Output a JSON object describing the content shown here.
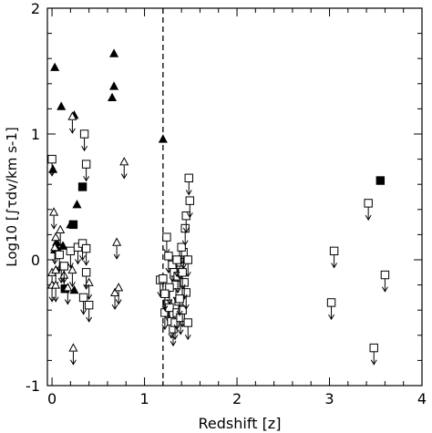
{
  "chart_data": {
    "type": "scatter",
    "xlabel": "Redshift [z]",
    "ylabel": "Log10 [∫τdv/km s-1]",
    "xlim": [
      -0.05,
      4.0
    ],
    "ylim": [
      -1,
      2
    ],
    "x_ticks": [
      0,
      1,
      2,
      3,
      4
    ],
    "y_ticks": [
      -1,
      0,
      1,
      2
    ],
    "divider_line_x": 1.2,
    "series": [
      {
        "marker": "filled-triangle",
        "points": [
          [
            0.03,
            1.53
          ],
          [
            0.1,
            1.22
          ],
          [
            0.24,
            1.15
          ],
          [
            0.67,
            1.64
          ],
          [
            0.67,
            1.38
          ],
          [
            0.65,
            1.29
          ],
          [
            1.2,
            0.96
          ],
          [
            0.01,
            0.72
          ],
          [
            0.03,
            0.08
          ],
          [
            0.06,
            0.09
          ],
          [
            0.2,
            0.28
          ],
          [
            0.24,
            -0.24
          ],
          [
            0.27,
            0.44
          ],
          [
            0.12,
            0.11
          ],
          [
            0.05,
            0.14
          ]
        ]
      },
      {
        "marker": "filled-square",
        "points": [
          [
            0.33,
            0.58
          ],
          [
            0.23,
            0.28
          ],
          [
            0.14,
            -0.23
          ],
          [
            3.55,
            0.63
          ]
        ]
      },
      {
        "marker": "open-triangle-arrow",
        "points": [
          [
            0.22,
            1.14
          ],
          [
            0.02,
            0.38
          ],
          [
            0.04,
            0.18
          ],
          [
            0.09,
            0.24
          ],
          [
            0.03,
            0.1
          ],
          [
            0.0,
            -0.1
          ],
          [
            0.04,
            -0.08
          ],
          [
            0.1,
            -0.05
          ],
          [
            0.13,
            -0.12
          ],
          [
            0.22,
            -0.08
          ],
          [
            0.0,
            -0.2
          ],
          [
            0.04,
            -0.2
          ],
          [
            0.23,
            -0.7
          ],
          [
            0.4,
            -0.18
          ],
          [
            0.7,
            0.14
          ],
          [
            0.68,
            -0.26
          ],
          [
            0.72,
            -0.22
          ],
          [
            0.78,
            0.78
          ],
          [
            0.17,
            -0.22
          ]
        ]
      },
      {
        "marker": "open-square-arrow",
        "points": [
          [
            0.0,
            0.8
          ],
          [
            0.35,
            1.0
          ],
          [
            0.37,
            0.76
          ],
          [
            0.08,
            0.04
          ],
          [
            0.13,
            -0.05
          ],
          [
            0.2,
            0.07
          ],
          [
            0.28,
            0.1
          ],
          [
            0.33,
            0.13
          ],
          [
            0.37,
            0.09
          ],
          [
            0.37,
            -0.1
          ],
          [
            0.34,
            -0.3
          ],
          [
            0.4,
            -0.36
          ],
          [
            1.17,
            -0.16
          ],
          [
            1.2,
            -0.15
          ],
          [
            1.22,
            -0.42
          ],
          [
            1.24,
            0.18
          ],
          [
            1.26,
            0.03
          ],
          [
            1.3,
            -0.04
          ],
          [
            1.32,
            -0.1
          ],
          [
            1.34,
            -0.2
          ],
          [
            1.36,
            -0.13
          ],
          [
            1.38,
            -0.02
          ],
          [
            1.25,
            -0.35
          ],
          [
            1.27,
            -0.38
          ],
          [
            1.29,
            -0.49
          ],
          [
            1.31,
            -0.55
          ],
          [
            1.33,
            -0.5
          ],
          [
            1.35,
            -0.42
          ],
          [
            1.37,
            -0.33
          ],
          [
            1.39,
            -0.46
          ],
          [
            1.41,
            -0.4
          ],
          [
            1.42,
            0.06
          ],
          [
            1.4,
            0.1
          ],
          [
            1.44,
            0.25
          ],
          [
            1.45,
            0.35
          ],
          [
            1.47,
            0.0
          ],
          [
            1.48,
            0.65
          ],
          [
            1.49,
            0.47
          ],
          [
            1.47,
            -0.5
          ],
          [
            1.45,
            -0.26
          ],
          [
            1.43,
            -0.18
          ],
          [
            1.41,
            -0.1
          ],
          [
            1.27,
            -0.22
          ],
          [
            1.22,
            -0.27
          ],
          [
            1.35,
            0.0
          ],
          [
            1.38,
            -0.31
          ],
          [
            3.02,
            -0.34
          ],
          [
            3.05,
            0.07
          ],
          [
            3.42,
            0.45
          ],
          [
            3.48,
            -0.7
          ],
          [
            3.6,
            -0.12
          ]
        ]
      }
    ]
  }
}
